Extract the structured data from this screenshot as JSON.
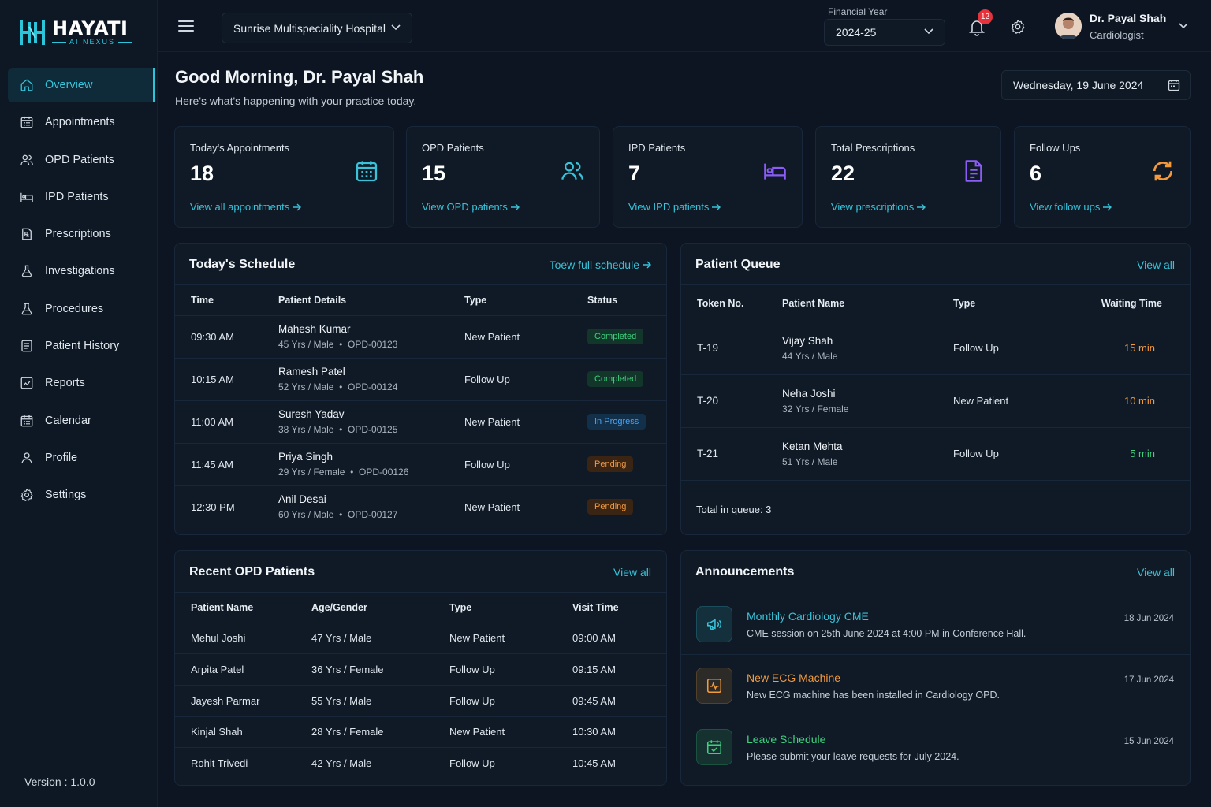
{
  "brand": {
    "name": "HAYATI",
    "subtitle": "AI NEXUS"
  },
  "sidebar": {
    "items": [
      {
        "label": "Overview",
        "icon": "home-icon",
        "active": true
      },
      {
        "label": "Appointments",
        "icon": "calendar-icon"
      },
      {
        "label": "OPD Patients",
        "icon": "users-icon"
      },
      {
        "label": "IPD Patients",
        "icon": "bed-icon"
      },
      {
        "label": "Prescriptions",
        "icon": "prescription-icon"
      },
      {
        "label": "Investigations",
        "icon": "flask-icon"
      },
      {
        "label": "Procedures",
        "icon": "beaker-icon"
      },
      {
        "label": "Patient History",
        "icon": "history-icon"
      },
      {
        "label": "Reports",
        "icon": "report-icon"
      },
      {
        "label": "Calendar",
        "icon": "calendar-icon"
      },
      {
        "label": "Profile",
        "icon": "user-icon"
      },
      {
        "label": "Settings",
        "icon": "gear-icon"
      }
    ],
    "version": "Version : 1.0.0"
  },
  "topbar": {
    "hospital": "Sunrise Multispeciality Hospital",
    "fy_label": "Financial Year",
    "fy_value": "2024-25",
    "notifications": "12",
    "user_name": "Dr. Payal Shah",
    "user_role": "Cardiologist"
  },
  "header": {
    "greeting": "Good Morning, Dr. Payal Shah",
    "subtitle": "Here's what's happening with your practice today.",
    "date": "Wednesday, 19 June 2024"
  },
  "stats": [
    {
      "label": "Today's Appointments",
      "value": "18",
      "link": "View all appointments",
      "icon": "calendar-icon",
      "color": "#39c2d8"
    },
    {
      "label": "OPD Patients",
      "value": "15",
      "link": "View OPD patients",
      "icon": "users-icon",
      "color": "#39c2d8"
    },
    {
      "label": "IPD Patients",
      "value": "7",
      "link": "View IPD patients",
      "icon": "bed-icon",
      "color": "#8b5cf6"
    },
    {
      "label": "Total Prescriptions",
      "value": "22",
      "link": "View prescriptions",
      "icon": "document-icon",
      "color": "#8b5cf6"
    },
    {
      "label": "Follow Ups",
      "value": "6",
      "link": "View follow ups",
      "icon": "refresh-icon",
      "color": "#f39a3c"
    }
  ],
  "schedule": {
    "title": "Today's Schedule",
    "link": "Toew full schedule",
    "columns": [
      "Time",
      "Patient Details",
      "Type",
      "Status"
    ],
    "rows": [
      {
        "time": "09:30 AM",
        "name": "Mahesh Kumar",
        "meta": "45 Yrs / Male  •  OPD-00123",
        "type": "New Patient",
        "status": "Completed"
      },
      {
        "time": "10:15 AM",
        "name": "Ramesh Patel",
        "meta": "52 Yrs / Male  •  OPD-00124",
        "type": "Follow Up",
        "status": "Completed"
      },
      {
        "time": "11:00 AM",
        "name": "Suresh Yadav",
        "meta": "38 Yrs / Male  •  OPD-00125",
        "type": "New Patient",
        "status": "In Progress"
      },
      {
        "time": "11:45 AM",
        "name": "Priya Singh",
        "meta": "29 Yrs / Female  •  OPD-00126",
        "type": "Follow Up",
        "status": "Pending"
      },
      {
        "time": "12:30 PM",
        "name": "Anil Desai",
        "meta": "60 Yrs / Male  •  OPD-00127",
        "type": "New Patient",
        "status": "Pending"
      }
    ]
  },
  "queue": {
    "title": "Patient Queue",
    "link": "View all",
    "columns": [
      "Token No.",
      "Patient Name",
      "Type",
      "Waiting Time"
    ],
    "rows": [
      {
        "token": "T-19",
        "name": "Vijay Shah",
        "meta": "44 Yrs / Male",
        "type": "Follow Up",
        "wait": "15 min",
        "color": "#f39a3c"
      },
      {
        "token": "T-20",
        "name": "Neha Joshi",
        "meta": "32 Yrs / Female",
        "type": "New Patient",
        "wait": "10 min",
        "color": "#f39a3c"
      },
      {
        "token": "T-21",
        "name": "Ketan Mehta",
        "meta": "51 Yrs / Male",
        "type": "Follow Up",
        "wait": "5 min",
        "color": "#3ed07f"
      }
    ],
    "total": "Total in queue: 3"
  },
  "recent": {
    "title": "Recent OPD Patients",
    "link": "View all",
    "columns": [
      "Patient Name",
      "Age/Gender",
      "Type",
      "Visit Time"
    ],
    "rows": [
      {
        "name": "Mehul Joshi",
        "age": "47 Yrs / Male",
        "type": "New Patient",
        "time": "09:00 AM"
      },
      {
        "name": "Arpita Patel",
        "age": "36 Yrs / Female",
        "type": "Follow Up",
        "time": "09:15 AM"
      },
      {
        "name": "Jayesh Parmar",
        "age": "55 Yrs / Male",
        "type": "Follow Up",
        "time": "09:45 AM"
      },
      {
        "name": "Kinjal Shah",
        "age": "28 Yrs / Female",
        "type": "New Patient",
        "time": "10:30 AM"
      },
      {
        "name": "Rohit Trivedi",
        "age": "42 Yrs / Male",
        "type": "Follow Up",
        "time": "10:45 AM"
      }
    ]
  },
  "announcements": {
    "title": "Announcements",
    "link": "View all",
    "items": [
      {
        "title": "Monthly Cardiology CME",
        "text": "CME session on 25th June 2024 at 4:00 PM in Conference Hall.",
        "date": "18 Jun 2024",
        "color": "#39c2d8",
        "icon": "megaphone-icon"
      },
      {
        "title": "New ECG Machine",
        "text": "New ECG machine has been installed in Cardiology OPD.",
        "date": "17 Jun 2024",
        "color": "#f39a3c",
        "icon": "ecg-icon"
      },
      {
        "title": "Leave Schedule",
        "text": "Please submit your leave requests for July 2024.",
        "date": "15 Jun 2024",
        "color": "#3ed07f",
        "icon": "calendar-check-icon"
      }
    ]
  }
}
